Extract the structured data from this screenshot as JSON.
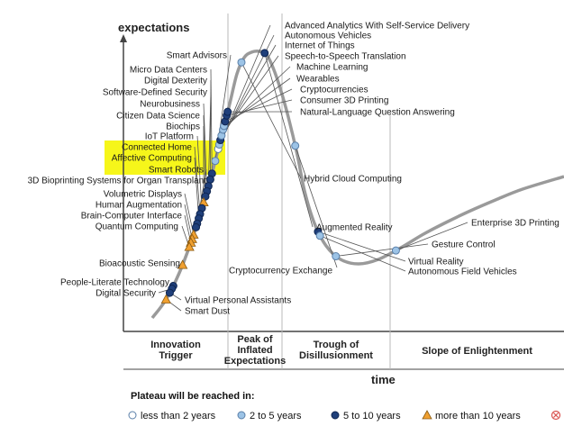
{
  "chart_data": {
    "type": "scatter",
    "ylabel": "expectations",
    "xlabel": "time",
    "phases": [
      {
        "lines": [
          "Innovation",
          "Trigger"
        ]
      },
      {
        "lines": [
          "Peak of",
          "Inflated",
          "Expectations"
        ]
      },
      {
        "lines": [
          "Trough of",
          "Disillusionment"
        ]
      },
      {
        "lines": [
          "Slope of Enlightenment"
        ]
      }
    ],
    "legend": {
      "title": "Plateau will be reached in:",
      "items": [
        {
          "label": "less than 2 years",
          "marker": "white"
        },
        {
          "label": "2 to 5 years",
          "marker": "light"
        },
        {
          "label": "5 to 10 years",
          "marker": "dark"
        },
        {
          "label": "more than 10 years",
          "marker": "triangle"
        }
      ],
      "truncated_marker": "obsolete-before-plateau-icon"
    },
    "colors": {
      "curve": "#9a9a9a",
      "white": "#ffffff",
      "light": "#9cc3e6",
      "dark": "#1f3f7a",
      "triangle": "#f0a030",
      "highlight": "#f6f61a",
      "phase_divider": "#b8b8b8"
    },
    "points": [
      {
        "name": "Advanced Analytics With Self-Service Delivery",
        "t": 0.238,
        "c": "white"
      },
      {
        "name": "Autonomous Vehicles",
        "t": 0.244,
        "c": "light"
      },
      {
        "name": "Internet of Things",
        "t": 0.25,
        "c": "dark"
      },
      {
        "name": "Speech-to-Speech Translation",
        "t": 0.256,
        "c": "light"
      },
      {
        "name": "Machine Learning",
        "t": 0.264,
        "c": "light"
      },
      {
        "name": "Wearables",
        "t": 0.269,
        "c": "light"
      },
      {
        "name": "Cryptocurrencies",
        "t": 0.275,
        "c": "dark"
      },
      {
        "name": "Consumer 3D Printing",
        "t": 0.283,
        "c": "dark"
      },
      {
        "name": "Natural-Language Question Answering",
        "t": 0.288,
        "c": "dark"
      },
      {
        "name": "Smart Advisors",
        "t": 0.222,
        "c": "light"
      },
      {
        "name": "Micro Data Centers",
        "t": 0.205,
        "c": "dark"
      },
      {
        "name": "Digital Dexterity",
        "t": 0.197,
        "c": "dark"
      },
      {
        "name": "Software-Defined Security",
        "t": 0.188,
        "c": "dark"
      },
      {
        "name": "Neurobusiness",
        "t": 0.181,
        "c": "dark"
      },
      {
        "name": "Citizen Data Science",
        "t": 0.174,
        "c": "dark"
      },
      {
        "name": "Biochips",
        "t": 0.166,
        "c": "triangle"
      },
      {
        "name": "IoT Platform",
        "t": 0.158,
        "c": "dark"
      },
      {
        "name": "Connected Home",
        "t": 0.15,
        "c": "dark"
      },
      {
        "name": "Affective Computing",
        "t": 0.144,
        "c": "dark"
      },
      {
        "name": "Smart Robots",
        "t": 0.137,
        "c": "dark"
      },
      {
        "name": "3D Bioprinting Systems for Organ Transplant",
        "t": 0.132,
        "c": "dark"
      },
      {
        "name": "Volumetric Displays",
        "t": 0.122,
        "c": "triangle"
      },
      {
        "name": "Human Augmentation",
        "t": 0.116,
        "c": "triangle"
      },
      {
        "name": "Brain-Computer Interface",
        "t": 0.111,
        "c": "triangle"
      },
      {
        "name": "Quantum Computing",
        "t": 0.105,
        "c": "triangle"
      },
      {
        "name": "Bioacoustic Sensing",
        "t": 0.08,
        "c": "triangle"
      },
      {
        "name": "People-Literate Technology",
        "t": 0.05,
        "c": "dark"
      },
      {
        "name": "Digital Security",
        "t": 0.046,
        "c": "dark"
      },
      {
        "name": "Virtual Personal Assistants",
        "t": 0.04,
        "c": "dark"
      },
      {
        "name": "Smart Dust",
        "t": 0.03,
        "c": "triangle"
      },
      {
        "name": "Hybrid Cloud Computing",
        "t": 0.355,
        "c": "light"
      },
      {
        "name": "Augmented Reality",
        "t": 0.392,
        "c": "dark"
      },
      {
        "name": "Cryptocurrency Exchange",
        "t": 0.52,
        "c": "light"
      },
      {
        "name": "Virtual Reality",
        "t": 0.636,
        "c": "dark"
      },
      {
        "name": "Autonomous Field Vehicles",
        "t": 0.642,
        "c": "light"
      },
      {
        "name": "Gesture Control",
        "t": 0.676,
        "c": "light"
      },
      {
        "name": "Enterprise 3D Printing",
        "t": 0.76,
        "c": "light"
      }
    ],
    "highlighted": [
      "Connected Home",
      "Affective Computing",
      "Smart Robots"
    ]
  }
}
